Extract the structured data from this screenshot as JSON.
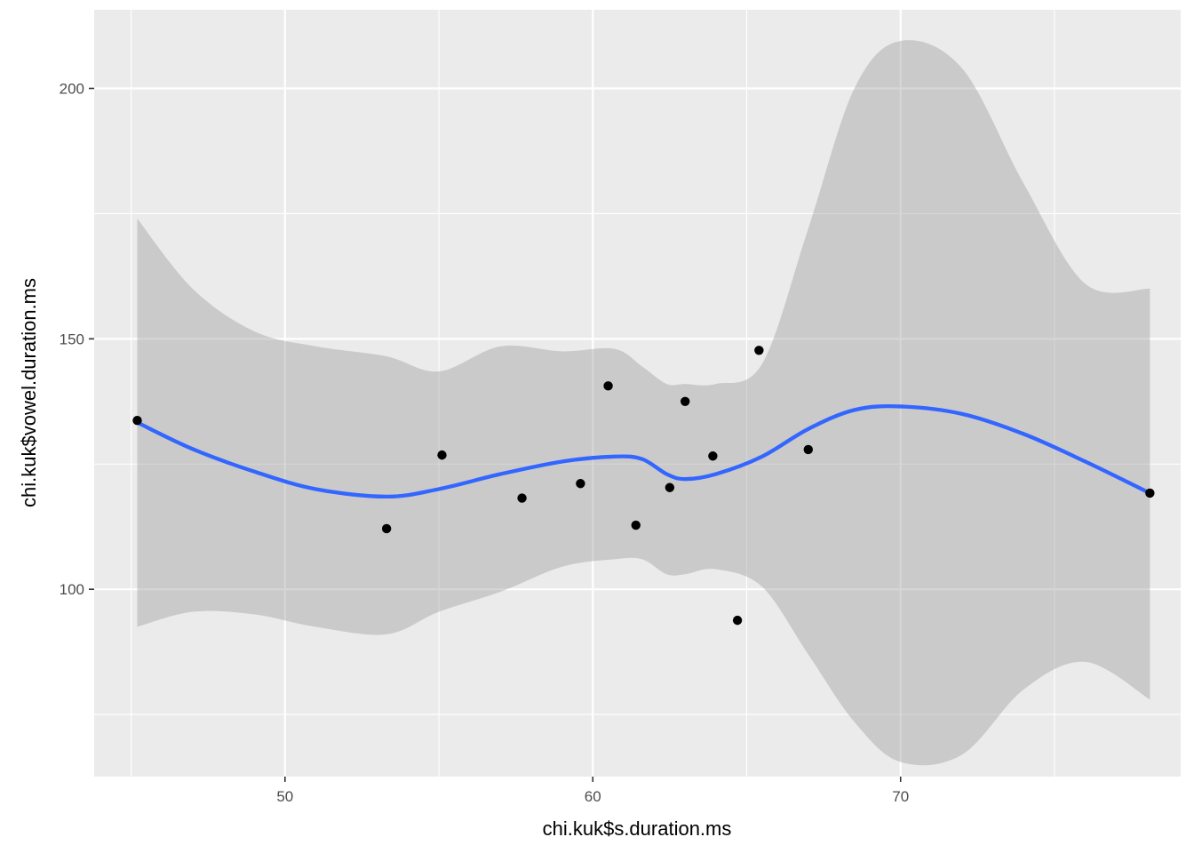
{
  "chart_data": {
    "type": "scatter",
    "xlabel": "chi.kuk$s.duration.ms",
    "ylabel": "chi.kuk$vowel.duration.ms",
    "xlim": [
      43.8,
      79.1
    ],
    "ylim": [
      62.6,
      215.7
    ],
    "x_ticks": [
      50,
      60,
      70
    ],
    "x_tick_labels": [
      "50",
      "60",
      "70"
    ],
    "y_ticks": [
      100,
      150,
      200
    ],
    "y_tick_labels": [
      "100",
      "150",
      "200"
    ],
    "grid": true,
    "legend": "none",
    "points": [
      {
        "x": 45.2,
        "y": 133.7
      },
      {
        "x": 53.3,
        "y": 112.1
      },
      {
        "x": 55.1,
        "y": 126.8
      },
      {
        "x": 57.7,
        "y": 118.2
      },
      {
        "x": 59.6,
        "y": 121.1
      },
      {
        "x": 60.5,
        "y": 140.6
      },
      {
        "x": 61.4,
        "y": 112.8
      },
      {
        "x": 62.5,
        "y": 120.3
      },
      {
        "x": 63.0,
        "y": 137.5
      },
      {
        "x": 63.9,
        "y": 126.6
      },
      {
        "x": 64.7,
        "y": 93.8
      },
      {
        "x": 65.4,
        "y": 147.7
      },
      {
        "x": 67.0,
        "y": 127.9
      },
      {
        "x": 78.1,
        "y": 119.2
      }
    ],
    "smooth": {
      "method": "loess",
      "x": [
        45.2,
        47.0,
        49.0,
        51.0,
        53.3,
        55.0,
        57.0,
        59.0,
        60.7,
        61.6,
        62.4,
        63.0,
        64.0,
        65.5,
        67.0,
        68.5,
        70.0,
        72.0,
        74.0,
        76.0,
        78.1
      ],
      "y": [
        133.3,
        128.0,
        123.5,
        120.0,
        118.5,
        120.0,
        123.0,
        125.5,
        126.5,
        126.0,
        123.0,
        122.0,
        123.0,
        126.5,
        132.0,
        135.8,
        136.5,
        135.0,
        131.0,
        125.5,
        119.2
      ],
      "lower": [
        92.5,
        95.5,
        95.0,
        92.5,
        91.0,
        95.5,
        99.5,
        104.5,
        106.0,
        106.0,
        103.0,
        103.0,
        104.0,
        100.5,
        87.0,
        73.5,
        65.5,
        67.0,
        80.0,
        85.5,
        78.0
      ],
      "upper": [
        174.0,
        160.0,
        151.5,
        148.5,
        146.5,
        143.5,
        148.5,
        147.5,
        148.0,
        144.5,
        141.0,
        141.0,
        141.0,
        145.0,
        172.0,
        200.0,
        209.5,
        204.0,
        181.0,
        161.0,
        160.0
      ],
      "line_color": "#3366FF",
      "band_color": "#999999"
    },
    "colors": {
      "panel_bg": "#EBEBEB",
      "grid": "#FFFFFF",
      "point": "#000000"
    }
  }
}
